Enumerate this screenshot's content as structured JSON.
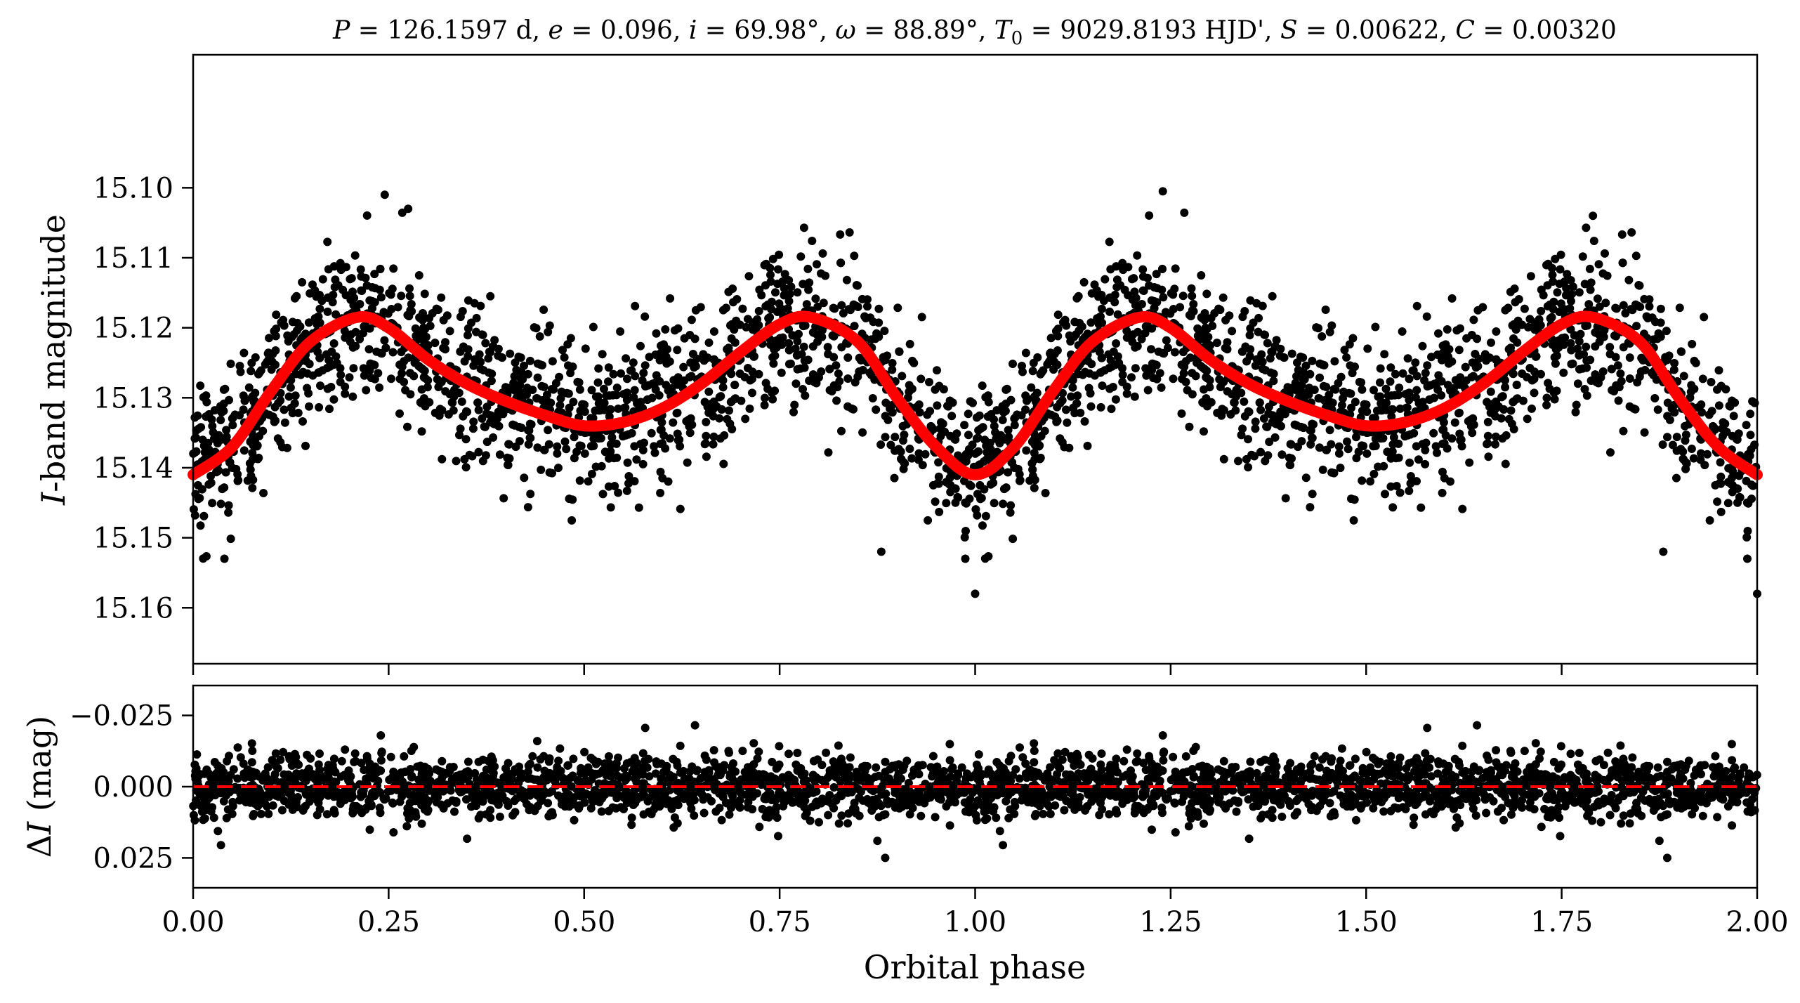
{
  "chart_data": [
    {
      "type": "scatter",
      "panel": "top",
      "title": "P = 126.1597 d, e = 0.096, i = 69.98°, ω = 88.89°, T0 = 9029.8193 HJD', S = 0.00622, C = 0.00320",
      "title_parts": {
        "P": "P",
        "P_val": " = 126.1597 d, ",
        "e": "e",
        "e_val": " = 0.096, ",
        "i": "i",
        "i_val": " = 69.98°, ",
        "w": "ω",
        "w_val": " = 88.89°, ",
        "T": "T",
        "T_sub": "0",
        "T_val": " = 9029.8193 HJD', ",
        "S": "S",
        "S_val": " = 0.00622, ",
        "C": "C",
        "C_val": " = 0.00320"
      },
      "ylabel_italic": "I",
      "ylabel_rest": "-band magnitude",
      "xlim": [
        0.0,
        2.0
      ],
      "ylim": [
        15.168,
        15.081
      ],
      "y_inverted": true,
      "yticks": [
        15.1,
        15.11,
        15.12,
        15.13,
        15.14,
        15.15,
        15.16
      ],
      "ytick_labels": [
        "15.10",
        "15.11",
        "15.12",
        "15.13",
        "15.14",
        "15.15",
        "15.16"
      ],
      "xticks": [
        0.0,
        0.25,
        0.5,
        0.75,
        1.0,
        1.25,
        1.5,
        1.75,
        2.0
      ],
      "model": {
        "name": "orbital model",
        "color": "#ff0000",
        "phase": [
          0.0,
          0.05,
          0.1,
          0.15,
          0.21,
          0.25,
          0.3,
          0.35,
          0.4,
          0.45,
          0.5,
          0.55,
          0.6,
          0.65,
          0.7,
          0.75,
          0.79,
          0.85,
          0.9,
          0.95,
          1.0,
          1.05,
          1.1,
          1.15,
          1.21,
          1.25,
          1.3,
          1.35,
          1.4,
          1.45,
          1.5,
          1.55,
          1.6,
          1.65,
          1.7,
          1.75,
          1.79,
          1.85,
          1.9,
          1.95,
          2.0
        ],
        "mag": [
          15.141,
          15.137,
          15.129,
          15.122,
          15.1185,
          15.12,
          15.1245,
          15.128,
          15.1305,
          15.1325,
          15.134,
          15.1335,
          15.1315,
          15.128,
          15.1235,
          15.1195,
          15.1185,
          15.122,
          15.13,
          15.137,
          15.141,
          15.137,
          15.129,
          15.122,
          15.1185,
          15.12,
          15.1245,
          15.128,
          15.1305,
          15.1325,
          15.134,
          15.1335,
          15.1315,
          15.128,
          15.1235,
          15.1195,
          15.1185,
          15.122,
          15.13,
          15.137,
          15.141
        ]
      },
      "observations": {
        "color": "#000000",
        "description_n_points": 1500,
        "scatter_sigma_mag": 0.0055,
        "outliers": [
          [
            0.04,
            15.153
          ],
          [
            0.245,
            15.101
          ],
          [
            0.88,
            15.152
          ],
          [
            1.0,
            15.158
          ],
          [
            1.24,
            15.1005
          ],
          [
            1.88,
            15.152
          ],
          [
            2.0,
            15.158
          ],
          [
            0.275,
            15.103
          ],
          [
            1.79,
            15.104
          ]
        ]
      }
    },
    {
      "type": "scatter",
      "panel": "bottom",
      "xlabel": "Orbital phase",
      "ylabel_prefix": "Δ",
      "ylabel_italic": "I",
      "ylabel_rest": " (mag)",
      "xlim": [
        0.0,
        2.0
      ],
      "ylim": [
        0.0355,
        -0.0355
      ],
      "y_inverted": true,
      "yticks": [
        -0.025,
        0.0,
        0.025
      ],
      "ytick_labels": [
        "−0.025",
        "0.000",
        "0.025"
      ],
      "xticks": [
        0.0,
        0.25,
        0.5,
        0.75,
        1.0,
        1.25,
        1.5,
        1.75,
        2.0
      ],
      "xtick_labels": [
        "0.00",
        "0.25",
        "0.50",
        "0.75",
        "1.00",
        "1.25",
        "1.50",
        "1.75",
        "2.00"
      ],
      "zero_line": {
        "value": 0.0,
        "color": "#ff0000",
        "style": "dashed"
      },
      "residuals": {
        "color": "#000000",
        "scatter_sigma_mag": 0.0055,
        "outliers": [
          [
            0.24,
            -0.018
          ],
          [
            0.885,
            0.025
          ],
          [
            0.875,
            0.019
          ],
          [
            1.24,
            -0.018
          ],
          [
            1.885,
            0.025
          ],
          [
            1.875,
            0.019
          ],
          [
            0.44,
            -0.016
          ]
        ]
      }
    }
  ]
}
